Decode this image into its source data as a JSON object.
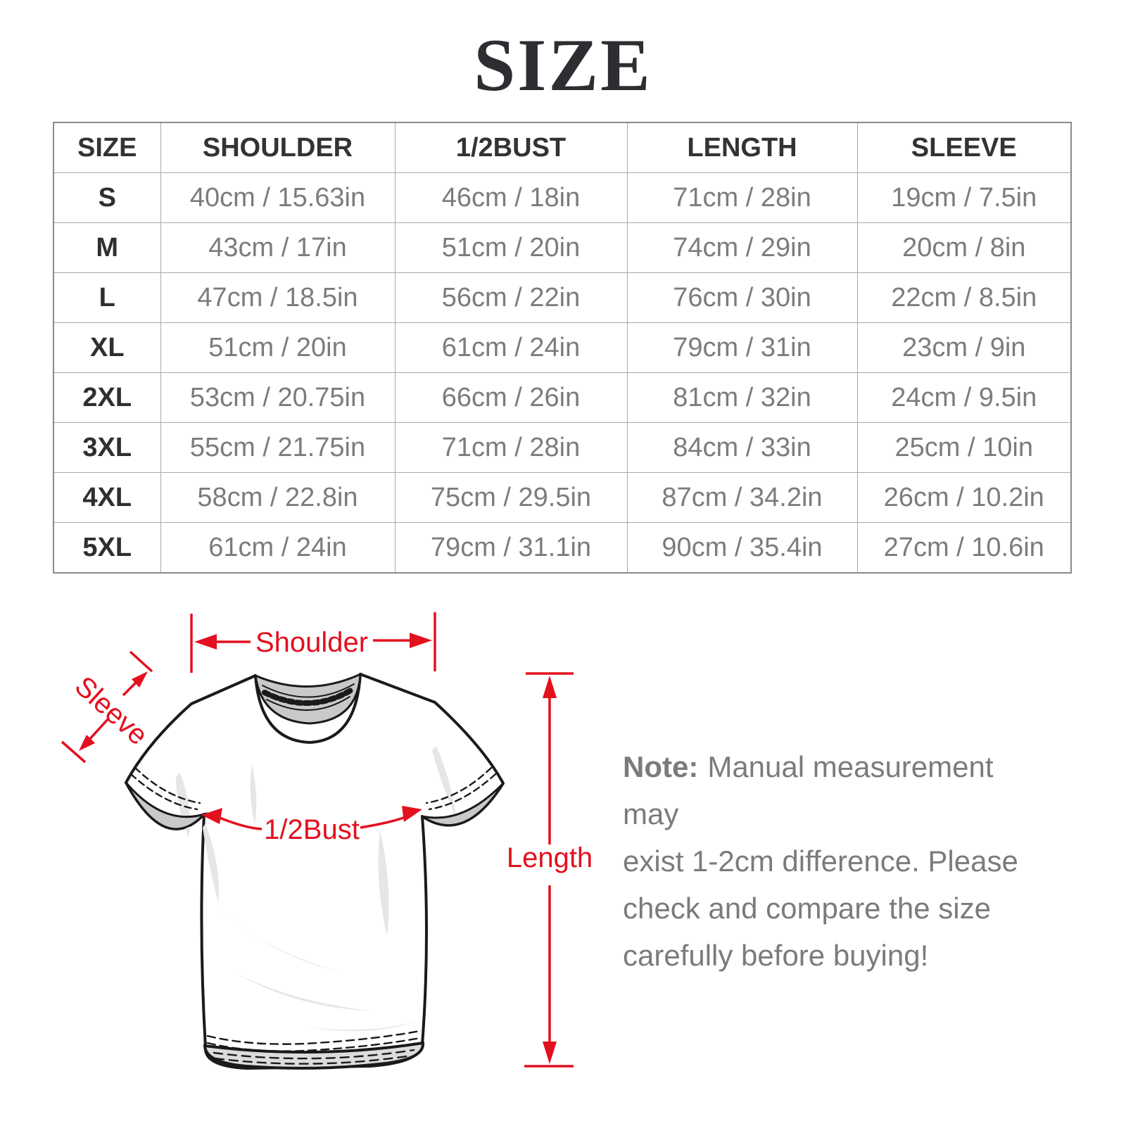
{
  "title": "SIZE",
  "colors": {
    "accent_red": "#e3101e",
    "title_text": "#2d2d32",
    "header_text": "#333333",
    "value_text": "#7c7c7c",
    "table_border": "#a8a8a8",
    "note_text": "#7b7b7b",
    "shirt_outline": "#1a1a1a",
    "shirt_shade": "#c9c9c9"
  },
  "table": {
    "columns": [
      "SIZE",
      "SHOULDER",
      "1/2BUST",
      "LENGTH",
      "SLEEVE"
    ],
    "rows": [
      {
        "size": "S",
        "shoulder": "40cm / 15.63in",
        "bust": "46cm / 18in",
        "length": "71cm / 28in",
        "sleeve": "19cm / 7.5in"
      },
      {
        "size": "M",
        "shoulder": "43cm / 17in",
        "bust": "51cm / 20in",
        "length": "74cm / 29in",
        "sleeve": "20cm / 8in"
      },
      {
        "size": "L",
        "shoulder": "47cm / 18.5in",
        "bust": "56cm / 22in",
        "length": "76cm / 30in",
        "sleeve": "22cm / 8.5in"
      },
      {
        "size": "XL",
        "shoulder": "51cm / 20in",
        "bust": "61cm / 24in",
        "length": "79cm / 31in",
        "sleeve": "23cm / 9in"
      },
      {
        "size": "2XL",
        "shoulder": "53cm / 20.75in",
        "bust": "66cm / 26in",
        "length": "81cm / 32in",
        "sleeve": "24cm / 9.5in"
      },
      {
        "size": "3XL",
        "shoulder": "55cm / 21.75in",
        "bust": "71cm / 28in",
        "length": "84cm / 33in",
        "sleeve": "25cm / 10in"
      },
      {
        "size": "4XL",
        "shoulder": "58cm / 22.8in",
        "bust": "75cm / 29.5in",
        "length": "87cm / 34.2in",
        "sleeve": "26cm / 10.2in"
      },
      {
        "size": "5XL",
        "shoulder": "61cm / 24in",
        "bust": "79cm / 31.1in",
        "length": "90cm / 35.4in",
        "sleeve": "27cm / 10.6in"
      }
    ]
  },
  "diagram": {
    "labels": {
      "shoulder": "Shoulder",
      "sleeve": "Sleeve",
      "bust": "1/2Bust",
      "length": "Length"
    }
  },
  "note": {
    "prefix": "Note:",
    "line1": "Manual measurement may",
    "line2": "exist 1-2cm difference. Please",
    "line3": "check and compare the size",
    "line4": "carefully before buying!"
  }
}
